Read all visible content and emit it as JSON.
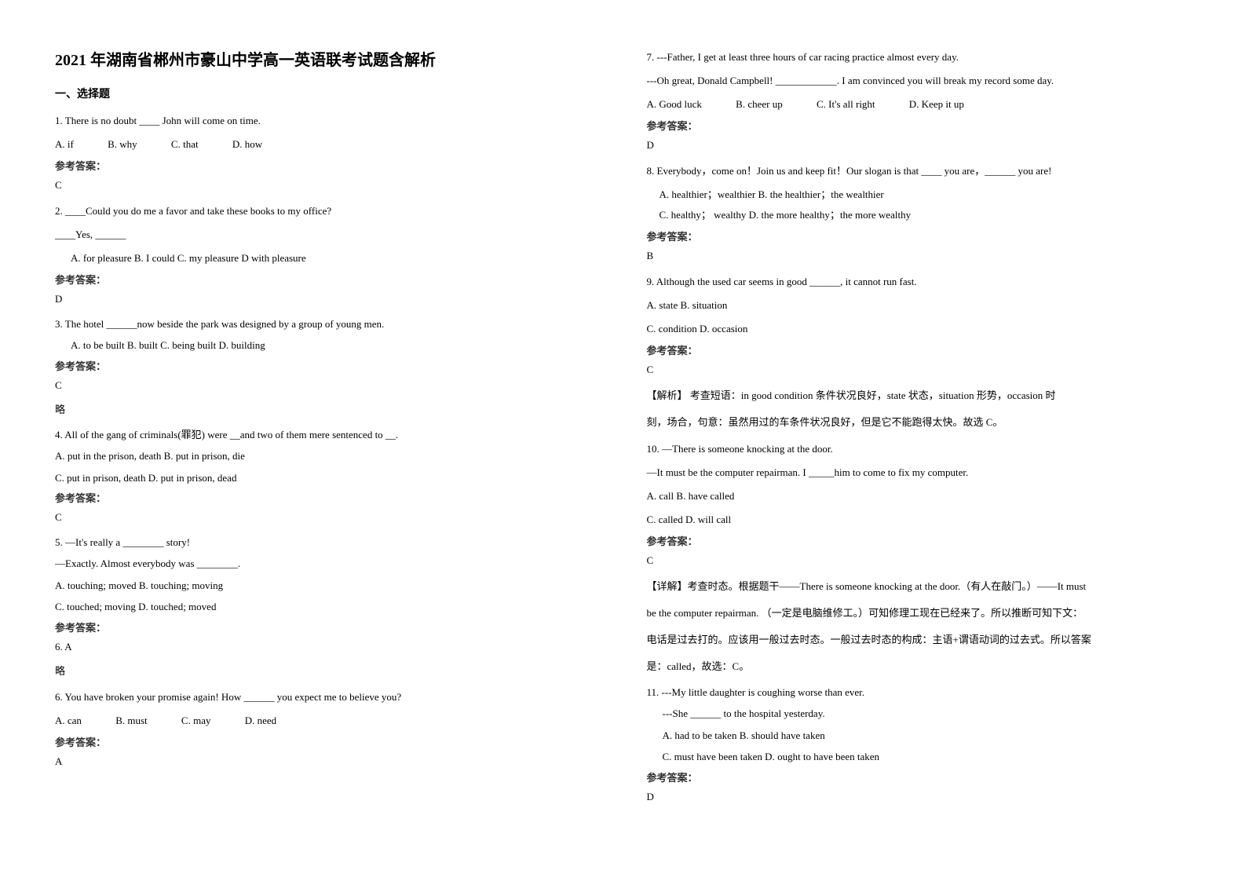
{
  "title": "2021 年湖南省郴州市豪山中学高一英语联考试题含解析",
  "section1": "一、选择题",
  "q1": {
    "text": "1. There is no doubt ____ John will come on time.",
    "optA": "A. if",
    "optB": "B. why",
    "optC": "C. that",
    "optD": "D. how",
    "answerLabel": "参考答案：",
    "answer": "C"
  },
  "q2": {
    "text": "2. ____Could you do me a favor and take these books to my office?",
    "line2": "____Yes, ______",
    "opts": "A. for pleasure    B. I could    C. my pleasure    D with pleasure",
    "answerLabel": "参考答案：",
    "answer": "D"
  },
  "q3": {
    "text": "3. The hotel ______now beside the park was designed by a group of young men.",
    "opts": "A. to be built    B. built    C. being built    D. building",
    "answerLabel": "参考答案：",
    "answer": "C",
    "note": "略"
  },
  "q4": {
    "text": "4. All of the gang of criminals(罪犯) were __and two of them mere sentenced to __.",
    "optsL1": "A. put in the prison, death    B. put in prison, die",
    "optsL2": "C. put in prison, death       D. put in prison, dead",
    "answerLabel": "参考答案：",
    "answer": "C"
  },
  "q5": {
    "text": "5. —It's really a ________ story!",
    "line2": "—Exactly. Almost everybody was ________.",
    "optsL1": "A. touching; moved      B. touching; moving",
    "optsL2": "C. touched; moving       D. touched; moved",
    "answerLabel": "参考答案：",
    "answer": "6.  A",
    "note": "略"
  },
  "q6": {
    "text": "6. You have broken your promise again! How ______ you expect me to believe you?",
    "optA": "A. can",
    "optB": "B. must",
    "optC": "C. may",
    "optD": "D. need",
    "answerLabel": "参考答案：",
    "answer": "A"
  },
  "q7": {
    "text": "7. ---Father, I get at least three hours of car racing practice almost every day.",
    "line2": "---Oh great, Donald Campbell! ____________. I am convinced you will break my record some day.",
    "optA": "A. Good luck",
    "optB": "B. cheer up",
    "optC": "C. It's all right",
    "optD": "D. Keep it up",
    "answerLabel": "参考答案：",
    "answer": "D"
  },
  "q8": {
    "text": "8. Everybody，come on！Join us and keep fit！Our slogan is that ____ you are，______ you are!",
    "optsL1": "A.  healthier；wealthier              B.  the healthier；the wealthier",
    "optsL2": "C.  healthy； wealthy             D.  the more healthy；the more wealthy",
    "answerLabel": "参考答案：",
    "answer": "B"
  },
  "q9": {
    "text": "9. Although the used car seems in good ______, it cannot run fast.",
    "optsL1": "A. state    B. situation",
    "optsL2": "C. condition    D. occasion",
    "answerLabel": "参考答案：",
    "answer": "C",
    "exp1": "【解析】 考查短语：in good condition 条件状况良好，state 状态，situation 形势，occasion 时",
    "exp2": "刻，场合，句意：虽然用过的车条件状况良好，但是它不能跑得太快。故选 C。"
  },
  "q10": {
    "text": "10. —There is someone knocking at the door.",
    "line2": "—It must be the computer repairman. I _____him to come to fix my computer.",
    "optsL1": "A. call    B. have called",
    "optsL2": "C. called    D. will call",
    "answerLabel": "参考答案：",
    "answer": "C",
    "exp1": "【详解】考查时态。根据题干——There is someone knocking at the door.（有人在敲门。）——It must",
    "exp2": "be the computer repairman. （一定是电脑维修工。）可知修理工现在已经来了。所以推断可知下文：",
    "exp3": "电话是过去打的。应该用一般过去时态。一般过去时态的构成：主语+谓语动词的过去式。所以答案",
    "exp4": "是：called，故选：C。"
  },
  "q11": {
    "text": "11. ---My little daughter is coughing worse than ever.",
    "line2": "---She ______ to the hospital yesterday.",
    "optsL1": "A. had to be taken                    B. should have taken",
    "optsL2": "C. must have been taken           D. ought to have been taken",
    "answerLabel": "参考答案：",
    "answer": "D"
  }
}
